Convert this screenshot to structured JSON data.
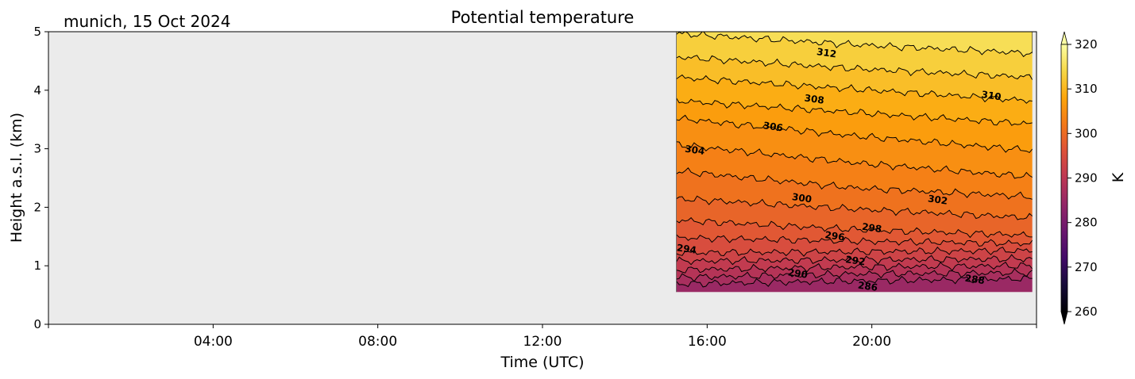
{
  "chart_data": {
    "type": "heatmap",
    "title": "Potential temperature",
    "location_label": "munich, 15 Oct 2024",
    "xlabel": "Time (UTC)",
    "ylabel": "Height a.s.l. (km)",
    "x_unit": "hours UTC",
    "xlim": [
      0,
      24
    ],
    "ylim": [
      0,
      5
    ],
    "x_ticks": [
      {
        "value": 4,
        "label": "04:00"
      },
      {
        "value": 8,
        "label": "08:00"
      },
      {
        "value": 12,
        "label": "12:00"
      },
      {
        "value": 16,
        "label": "16:00"
      },
      {
        "value": 20,
        "label": "20:00"
      }
    ],
    "y_ticks": [
      {
        "value": 0,
        "label": "0"
      },
      {
        "value": 1,
        "label": "1"
      },
      {
        "value": 2,
        "label": "2"
      },
      {
        "value": 3,
        "label": "3"
      },
      {
        "value": 4,
        "label": "4"
      },
      {
        "value": 5,
        "label": "5"
      }
    ],
    "data_extent": {
      "x_start": 15.25,
      "x_end": 23.9,
      "y_bottom": 0.55,
      "y_top": 5.0
    },
    "background_color": "#ebebeb",
    "colorbar": {
      "label": "K",
      "range": [
        260,
        320
      ],
      "extend": "both",
      "colormap": "inferno",
      "ticks": [
        {
          "value": 260,
          "label": "260"
        },
        {
          "value": 270,
          "label": "270"
        },
        {
          "value": 280,
          "label": "280"
        },
        {
          "value": 290,
          "label": "290"
        },
        {
          "value": 300,
          "label": "300"
        },
        {
          "value": 310,
          "label": "310"
        },
        {
          "value": 320,
          "label": "320"
        }
      ]
    },
    "contour_interval": 2,
    "contours": [
      {
        "level": 286,
        "heights": [
          0.69,
          0.74,
          0.78
        ],
        "label": "286",
        "label_pos": [
          19.9,
          0.64
        ]
      },
      {
        "level": 288,
        "heights": [
          0.8,
          0.86,
          0.88
        ],
        "label": "288",
        "label_pos": [
          22.5,
          0.76
        ]
      },
      {
        "level": 290,
        "heights": [
          0.93,
          0.98,
          1.0
        ],
        "label": "290",
        "label_pos": [
          18.2,
          0.86
        ]
      },
      {
        "level": 292,
        "heights": [
          1.08,
          1.1,
          1.12
        ],
        "label": "292",
        "label_pos": [
          19.6,
          1.08
        ]
      },
      {
        "level": 294,
        "heights": [
          1.22,
          1.24,
          1.26
        ],
        "label": "294",
        "label_pos": [
          15.5,
          1.28
        ]
      },
      {
        "level": 296,
        "heights": [
          1.48,
          1.42,
          1.38
        ],
        "label": "296",
        "label_pos": [
          19.1,
          1.5
        ]
      },
      {
        "level": 298,
        "heights": [
          1.78,
          1.62,
          1.52
        ],
        "label": "298",
        "label_pos": [
          20.0,
          1.64
        ]
      },
      {
        "level": 300,
        "heights": [
          2.15,
          1.97,
          1.82
        ],
        "label": "300",
        "label_pos": [
          18.3,
          2.15
        ]
      },
      {
        "level": 302,
        "heights": [
          2.62,
          2.33,
          2.18
        ],
        "label": "302",
        "label_pos": [
          21.6,
          2.12
        ]
      },
      {
        "level": 304,
        "heights": [
          3.07,
          2.76,
          2.52
        ],
        "label": "304",
        "label_pos": [
          15.7,
          2.97
        ]
      },
      {
        "level": 306,
        "heights": [
          3.52,
          3.22,
          2.97
        ],
        "label": "306",
        "label_pos": [
          17.6,
          3.37
        ]
      },
      {
        "level": 308,
        "heights": [
          3.82,
          3.62,
          3.42
        ],
        "label": "308",
        "label_pos": [
          18.6,
          3.84
        ]
      },
      {
        "level": 310,
        "heights": [
          4.22,
          4.02,
          3.82
        ],
        "label": "310",
        "label_pos": [
          22.9,
          3.9
        ]
      },
      {
        "level": 312,
        "heights": [
          4.57,
          4.37,
          4.22
        ],
        "label": "312",
        "label_pos": [
          18.9,
          4.63
        ]
      },
      {
        "level": 314,
        "heights": [
          4.97,
          4.78,
          4.63
        ],
        "label": "",
        "label_pos": null
      }
    ]
  }
}
